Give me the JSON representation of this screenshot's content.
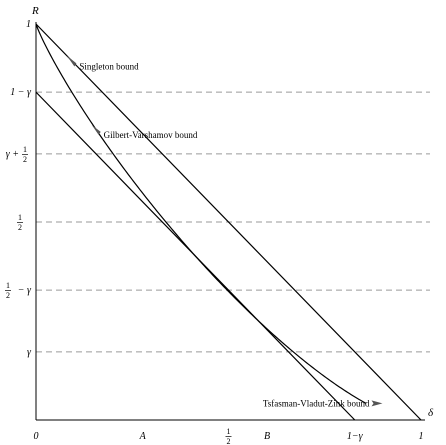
{
  "chart_data": {
    "type": "line",
    "title": "",
    "xlabel": "δ",
    "ylabel": "R",
    "xlim": [
      0,
      1
    ],
    "ylim": [
      0,
      1
    ],
    "grid": "dashed horizontal lines at labelled y ticks",
    "x_ticks": [
      {
        "label": "0",
        "value": 0
      },
      {
        "label": "A",
        "value": 0.277,
        "italic": true
      },
      {
        "label": "1/2",
        "value": 0.5,
        "fraction": true
      },
      {
        "label": "B",
        "value": 0.6
      },
      {
        "label": "1−γ",
        "value": 0.828
      },
      {
        "label": "1",
        "value": 1
      }
    ],
    "y_ticks": [
      {
        "label": "1",
        "value": 1
      },
      {
        "label": "1 − γ",
        "value": 0.828
      },
      {
        "label": "γ + 1/2",
        "value": 0.672,
        "parts": [
          "γ +",
          "1",
          "2"
        ]
      },
      {
        "label": "1/2",
        "value": 0.5,
        "parts": [
          "",
          "1",
          "2"
        ]
      },
      {
        "label": "1/2 − γ",
        "value": 0.328,
        "parts": [
          "",
          "1",
          "2",
          "− γ"
        ]
      },
      {
        "label": "γ",
        "value": 0.172
      }
    ],
    "series": [
      {
        "name": "Singleton bound",
        "kind": "line",
        "points": [
          [
            0,
            1
          ],
          [
            1,
            0
          ]
        ]
      },
      {
        "name": "Gilbert-Varshamov bound",
        "kind": "gv",
        "q": 49,
        "from": 0,
        "to": 0.857
      },
      {
        "name": "Tsfasman-Vladut-Zink bound",
        "kind": "line",
        "points": [
          [
            0,
            0.828
          ],
          [
            0.828,
            0
          ]
        ]
      }
    ],
    "annotations": [
      {
        "text": "Singleton bound",
        "target": [
          0.08,
          0.92
        ],
        "text_at": [
          0.105,
          0.893
        ]
      },
      {
        "text": "Gilbert-Varshamov bound",
        "target": [
          0.145,
          0.745
        ],
        "text_at": [
          0.168,
          0.72
        ]
      },
      {
        "text": "Tsfasman-Vladut-Zink bound",
        "target": [
          0.9,
          0.042
        ],
        "text_at": [
          0.73,
          0.042
        ]
      }
    ]
  }
}
